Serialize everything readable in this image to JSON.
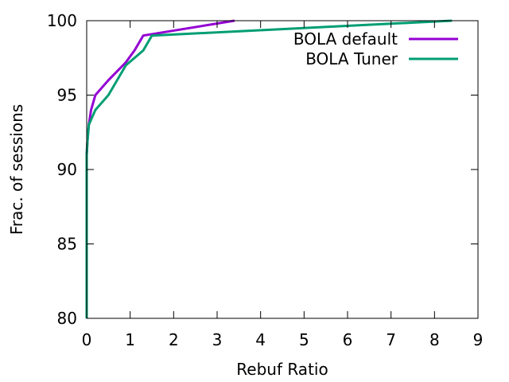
{
  "chart_data": {
    "type": "line",
    "title": "",
    "xlabel": "Rebuf Ratio",
    "ylabel": "Frac. of sessions",
    "xlim": [
      0,
      9
    ],
    "ylim": [
      80,
      100
    ],
    "xticks": [
      "0",
      "1",
      "2",
      "3",
      "4",
      "5",
      "6",
      "7",
      "8",
      "9"
    ],
    "yticks": [
      "80",
      "85",
      "90",
      "95",
      "100"
    ],
    "grid": false,
    "legend_position": "top-right",
    "series": [
      {
        "name": "BOLA default",
        "color": "#9400d3",
        "x": [
          0,
          0,
          0.02,
          0.05,
          0.1,
          0.2,
          0.5,
          0.9,
          1.1,
          1.3,
          3.4
        ],
        "y": [
          80,
          91,
          92,
          93,
          94,
          95,
          96,
          97.2,
          98,
          99,
          100
        ]
      },
      {
        "name": "BOLA Tuner",
        "color": "#009e73",
        "x": [
          0,
          0,
          0.02,
          0.05,
          0.2,
          0.5,
          0.9,
          1.3,
          1.5,
          8.4
        ],
        "y": [
          80,
          91,
          92,
          93,
          94,
          95,
          97,
          98,
          99,
          100
        ]
      }
    ]
  }
}
